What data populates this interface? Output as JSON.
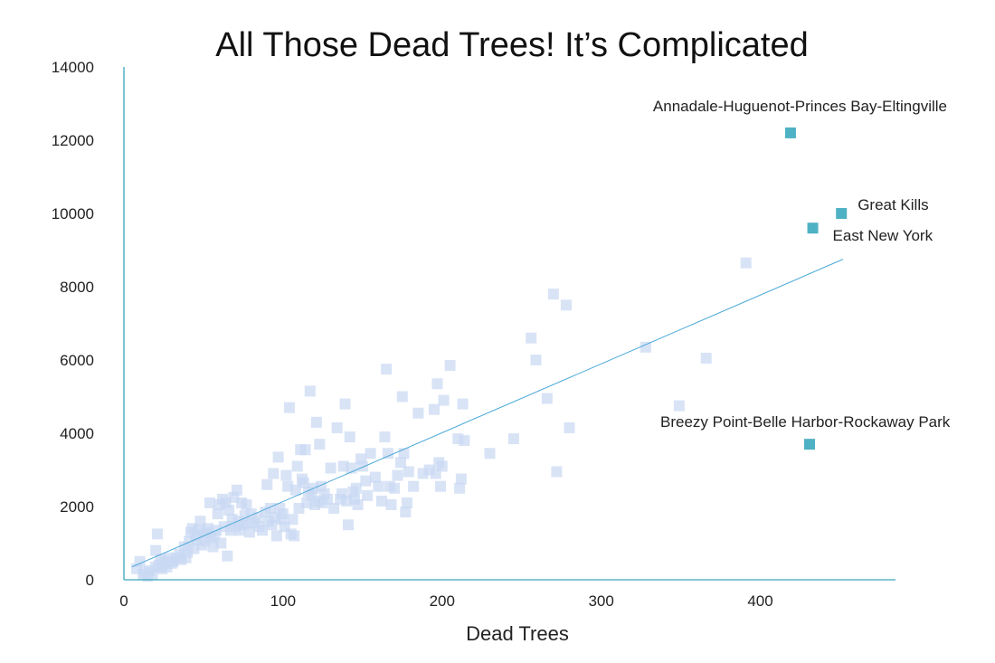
{
  "chart_data": {
    "type": "scatter",
    "title": "All Those Dead Trees! It’s Complicated",
    "xlabel": "Dead Trees",
    "ylabel": "",
    "xlim": [
      0,
      485
    ],
    "ylim": [
      0,
      14000
    ],
    "xticks": [
      0,
      100,
      200,
      300,
      400
    ],
    "yticks": [
      0,
      2000,
      4000,
      6000,
      8000,
      10000,
      12000,
      14000
    ],
    "grid": false,
    "colors": {
      "axis": "#3aa6b9",
      "point": "#c9d8f2",
      "highlight": "#4fb1c4",
      "trend": "#4aa8d8"
    },
    "trendline": {
      "x": [
        5,
        452
      ],
      "y": [
        350,
        8750
      ]
    },
    "points": [
      [
        8,
        300
      ],
      [
        10,
        500
      ],
      [
        12,
        150
      ],
      [
        13,
        200
      ],
      [
        15,
        100
      ],
      [
        16,
        250
      ],
      [
        18,
        150
      ],
      [
        20,
        350
      ],
      [
        20,
        800
      ],
      [
        21,
        1250
      ],
      [
        22,
        400
      ],
      [
        23,
        550
      ],
      [
        24,
        300
      ],
      [
        25,
        450
      ],
      [
        26,
        500
      ],
      [
        27,
        350
      ],
      [
        28,
        600
      ],
      [
        30,
        450
      ],
      [
        31,
        500
      ],
      [
        33,
        600
      ],
      [
        35,
        700
      ],
      [
        36,
        550
      ],
      [
        38,
        900
      ],
      [
        39,
        600
      ],
      [
        40,
        750
      ],
      [
        41,
        1050
      ],
      [
        42,
        1300
      ],
      [
        43,
        1400
      ],
      [
        44,
        850
      ],
      [
        45,
        1200
      ],
      [
        46,
        1100
      ],
      [
        47,
        1350
      ],
      [
        48,
        1600
      ],
      [
        49,
        950
      ],
      [
        50,
        1250
      ],
      [
        51,
        1050
      ],
      [
        52,
        1300
      ],
      [
        53,
        1400
      ],
      [
        54,
        2100
      ],
      [
        55,
        1150
      ],
      [
        56,
        900
      ],
      [
        57,
        1200
      ],
      [
        58,
        1350
      ],
      [
        59,
        1800
      ],
      [
        60,
        2050
      ],
      [
        61,
        1000
      ],
      [
        62,
        2200
      ],
      [
        63,
        1450
      ],
      [
        64,
        2100
      ],
      [
        65,
        650
      ],
      [
        66,
        1900
      ],
      [
        67,
        1350
      ],
      [
        68,
        1650
      ],
      [
        69,
        2250
      ],
      [
        70,
        1450
      ],
      [
        71,
        2450
      ],
      [
        72,
        1600
      ],
      [
        73,
        1350
      ],
      [
        74,
        2100
      ],
      [
        75,
        1500
      ],
      [
        76,
        1750
      ],
      [
        77,
        2050
      ],
      [
        78,
        1550
      ],
      [
        79,
        1300
      ],
      [
        80,
        1800
      ],
      [
        82,
        1550
      ],
      [
        84,
        1700
      ],
      [
        85,
        1450
      ],
      [
        87,
        1350
      ],
      [
        89,
        1850
      ],
      [
        90,
        2600
      ],
      [
        91,
        1600
      ],
      [
        92,
        1950
      ],
      [
        93,
        1500
      ],
      [
        94,
        2900
      ],
      [
        95,
        1700
      ],
      [
        96,
        1200
      ],
      [
        97,
        3350
      ],
      [
        98,
        1950
      ],
      [
        99,
        1650
      ],
      [
        100,
        1800
      ],
      [
        101,
        1450
      ],
      [
        102,
        2850
      ],
      [
        103,
        2550
      ],
      [
        104,
        4700
      ],
      [
        105,
        1250
      ],
      [
        106,
        1650
      ],
      [
        107,
        1200
      ],
      [
        108,
        2450
      ],
      [
        109,
        3100
      ],
      [
        110,
        1950
      ],
      [
        111,
        3550
      ],
      [
        112,
        2750
      ],
      [
        113,
        2650
      ],
      [
        114,
        3550
      ],
      [
        115,
        2100
      ],
      [
        116,
        2400
      ],
      [
        117,
        5150
      ],
      [
        118,
        2300
      ],
      [
        119,
        2500
      ],
      [
        120,
        2050
      ],
      [
        121,
        4300
      ],
      [
        122,
        2150
      ],
      [
        123,
        3700
      ],
      [
        124,
        2550
      ],
      [
        125,
        2100
      ],
      [
        126,
        2350
      ],
      [
        128,
        2200
      ],
      [
        130,
        3050
      ],
      [
        132,
        1950
      ],
      [
        134,
        4150
      ],
      [
        136,
        2200
      ],
      [
        137,
        2350
      ],
      [
        138,
        3100
      ],
      [
        139,
        4800
      ],
      [
        140,
        2150
      ],
      [
        141,
        1500
      ],
      [
        142,
        3900
      ],
      [
        143,
        3050
      ],
      [
        144,
        2400
      ],
      [
        145,
        2200
      ],
      [
        146,
        2500
      ],
      [
        147,
        2050
      ],
      [
        149,
        3300
      ],
      [
        150,
        3100
      ],
      [
        152,
        2700
      ],
      [
        153,
        2300
      ],
      [
        155,
        3450
      ],
      [
        158,
        2800
      ],
      [
        160,
        2550
      ],
      [
        162,
        2150
      ],
      [
        164,
        3900
      ],
      [
        165,
        5750
      ],
      [
        166,
        3450
      ],
      [
        167,
        2550
      ],
      [
        168,
        2050
      ],
      [
        170,
        2500
      ],
      [
        172,
        2850
      ],
      [
        174,
        3200
      ],
      [
        175,
        5000
      ],
      [
        176,
        3450
      ],
      [
        177,
        1850
      ],
      [
        178,
        2100
      ],
      [
        179,
        2950
      ],
      [
        182,
        2550
      ],
      [
        185,
        4550
      ],
      [
        188,
        2900
      ],
      [
        192,
        3000
      ],
      [
        195,
        4650
      ],
      [
        196,
        2900
      ],
      [
        197,
        5350
      ],
      [
        198,
        3200
      ],
      [
        199,
        2550
      ],
      [
        200,
        3100
      ],
      [
        201,
        4900
      ],
      [
        205,
        5850
      ],
      [
        210,
        3850
      ],
      [
        211,
        2500
      ],
      [
        212,
        2750
      ],
      [
        213,
        4800
      ],
      [
        214,
        3800
      ],
      [
        230,
        3450
      ],
      [
        245,
        3850
      ],
      [
        256,
        6600
      ],
      [
        259,
        6000
      ],
      [
        266,
        4950
      ],
      [
        270,
        7800
      ],
      [
        272,
        2950
      ],
      [
        278,
        7500
      ],
      [
        280,
        4150
      ],
      [
        328,
        6350
      ],
      [
        349,
        4750
      ],
      [
        366,
        6050
      ],
      [
        391,
        8650
      ]
    ],
    "highlights": [
      {
        "name": "Annadale-Huguenot-Princes Bay-Eltingville",
        "x": 419,
        "y": 12200
      },
      {
        "name": "Great Kills",
        "x": 451,
        "y": 10000
      },
      {
        "name": "East New York",
        "x": 433,
        "y": 9600
      },
      {
        "name": "Breezy Point-Belle Harbor-Rockaway Park",
        "x": 431,
        "y": 3700
      }
    ]
  }
}
